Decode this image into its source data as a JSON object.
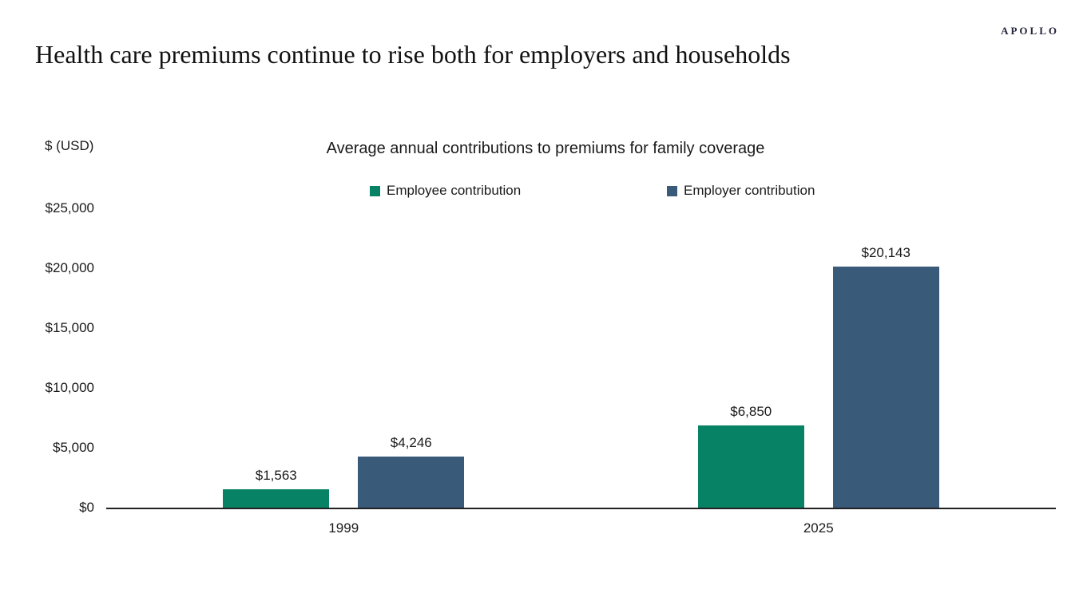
{
  "header": {
    "logo": "APOLLO",
    "title": "Health care premiums continue to rise both for employers and households"
  },
  "chart": {
    "unit_label": "$ (USD)"
  },
  "chart_data": {
    "type": "bar",
    "title": "Average annual contributions to premiums for family coverage",
    "categories": [
      "1999",
      "2025"
    ],
    "series": [
      {
        "name": "Employee contribution",
        "color": "#088265",
        "values": [
          1563,
          6850
        ],
        "labels": [
          "$1,563",
          "$6,850"
        ]
      },
      {
        "name": "Employer contribution",
        "color": "#3A5A7A",
        "values": [
          4246,
          20143
        ],
        "labels": [
          "$4,246",
          "$20,143"
        ]
      }
    ],
    "xlabel": "",
    "ylabel": "$ (USD)",
    "ylim": [
      0,
      25000
    ],
    "y_ticks": [
      0,
      5000,
      10000,
      15000,
      20000,
      25000
    ],
    "y_tick_labels": [
      "$0",
      "$5,000",
      "$10,000",
      "$15,000",
      "$20,000",
      "$25,000"
    ],
    "grid": false,
    "legend_position": "top"
  }
}
